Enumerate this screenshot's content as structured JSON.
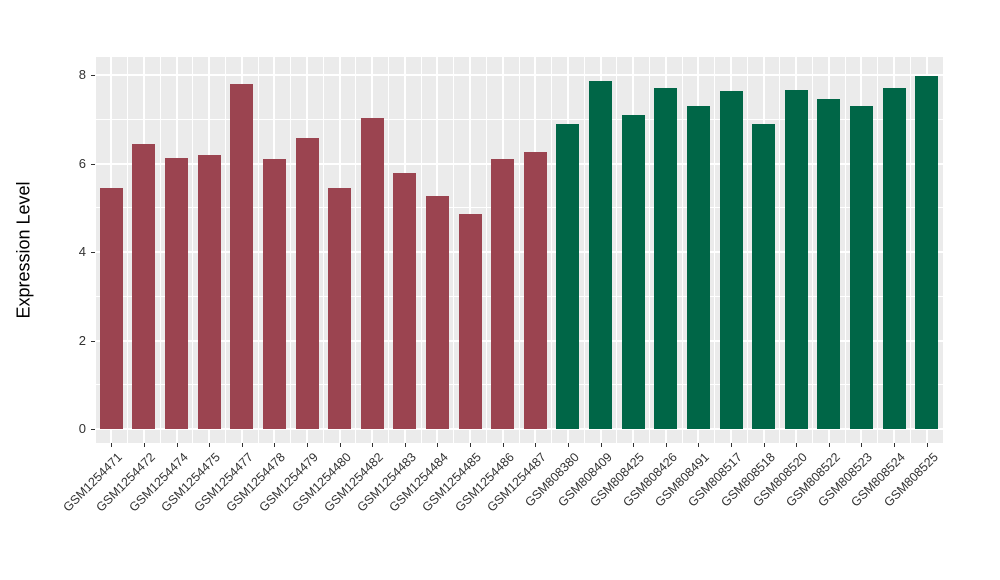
{
  "chart_data": {
    "type": "bar",
    "title": "",
    "xlabel": "",
    "ylabel": "Expression Level",
    "ylim": [
      0,
      8.35
    ],
    "yticks_major": [
      0,
      2,
      4,
      6,
      8
    ],
    "yticks_minor": [
      1,
      3,
      5,
      7
    ],
    "grid": true,
    "legend": "none",
    "panel_bg": "#EBEBEB",
    "grid_color": "#FFFFFF",
    "group_colors": {
      "group1": "#9B4450",
      "group2": "#006647"
    },
    "bars": [
      {
        "label": "GSM1254471",
        "value": 5.45,
        "group": "group1"
      },
      {
        "label": "GSM1254472",
        "value": 6.43,
        "group": "group1"
      },
      {
        "label": "GSM1254474",
        "value": 6.13,
        "group": "group1"
      },
      {
        "label": "GSM1254475",
        "value": 6.2,
        "group": "group1"
      },
      {
        "label": "GSM1254477",
        "value": 7.8,
        "group": "group1"
      },
      {
        "label": "GSM1254478",
        "value": 6.1,
        "group": "group1"
      },
      {
        "label": "GSM1254479",
        "value": 6.58,
        "group": "group1"
      },
      {
        "label": "GSM1254480",
        "value": 5.44,
        "group": "group1"
      },
      {
        "label": "GSM1254482",
        "value": 7.03,
        "group": "group1"
      },
      {
        "label": "GSM1254483",
        "value": 5.79,
        "group": "group1"
      },
      {
        "label": "GSM1254484",
        "value": 5.26,
        "group": "group1"
      },
      {
        "label": "GSM1254485",
        "value": 4.87,
        "group": "group1"
      },
      {
        "label": "GSM1254486",
        "value": 6.1,
        "group": "group1"
      },
      {
        "label": "GSM1254487",
        "value": 6.25,
        "group": "group1"
      },
      {
        "label": "GSM808380",
        "value": 6.9,
        "group": "group2"
      },
      {
        "label": "GSM808409",
        "value": 7.87,
        "group": "group2"
      },
      {
        "label": "GSM808425",
        "value": 7.1,
        "group": "group2"
      },
      {
        "label": "GSM808426",
        "value": 7.71,
        "group": "group2"
      },
      {
        "label": "GSM808491",
        "value": 7.3,
        "group": "group2"
      },
      {
        "label": "GSM808517",
        "value": 7.63,
        "group": "group2"
      },
      {
        "label": "GSM808518",
        "value": 6.9,
        "group": "group2"
      },
      {
        "label": "GSM808520",
        "value": 7.65,
        "group": "group2"
      },
      {
        "label": "GSM808522",
        "value": 7.46,
        "group": "group2"
      },
      {
        "label": "GSM808523",
        "value": 7.29,
        "group": "group2"
      },
      {
        "label": "GSM808524",
        "value": 7.71,
        "group": "group2"
      },
      {
        "label": "GSM808525",
        "value": 7.98,
        "group": "group2"
      }
    ]
  }
}
